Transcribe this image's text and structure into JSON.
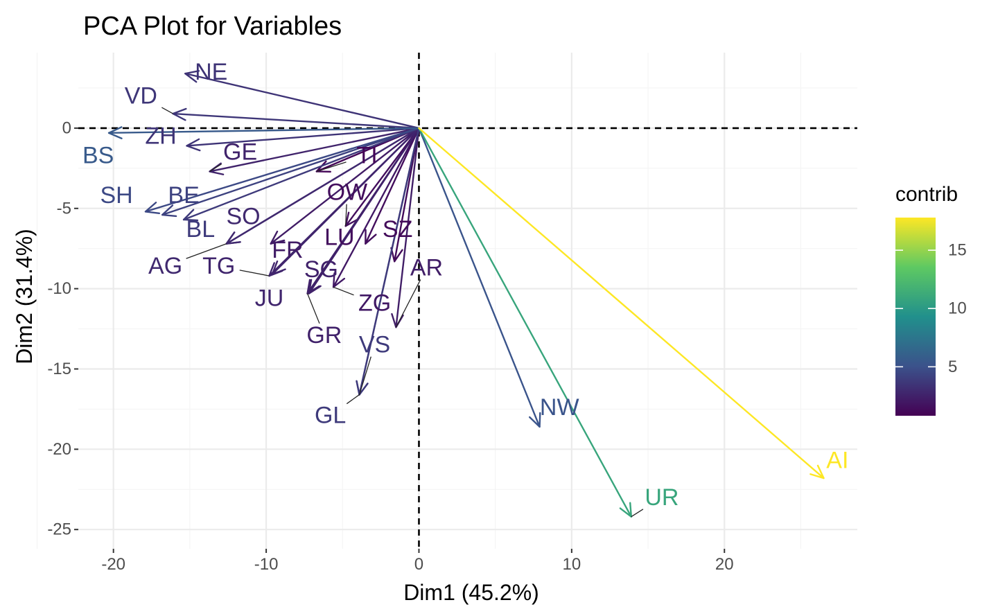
{
  "chart_data": {
    "type": "scatter",
    "title": "PCA Plot for Variables",
    "xlabel": "Dim1 (45.2%)",
    "ylabel": "Dim2 (31.4%)",
    "xlim": [
      -22.3,
      28.7
    ],
    "ylim": [
      -26.2,
      4.7
    ],
    "x_ticks": [
      -20,
      -10,
      0,
      10,
      20
    ],
    "y_ticks": [
      0,
      -5,
      -10,
      -15,
      -20,
      -25
    ],
    "grid": true,
    "reference_lines": {
      "x": 0,
      "y": 0,
      "style": "dashed"
    },
    "legend": {
      "title": "contrib",
      "position": "right",
      "ticks": [
        5,
        10,
        15
      ],
      "range": [
        0.8,
        17.8
      ],
      "colors": [
        "#440154",
        "#3b528b",
        "#21908c",
        "#5ec962",
        "#fde725"
      ]
    },
    "variables": [
      {
        "name": "NE",
        "x": -15.3,
        "y": 3.4,
        "contrib": 3.4,
        "label_x": -13.6,
        "label_y": 3.5
      },
      {
        "name": "VD",
        "x": -16.1,
        "y": 0.9,
        "contrib": 3.6,
        "label_x": -18.2,
        "label_y": 2.0
      },
      {
        "name": "ZH",
        "x": -15.2,
        "y": -1.1,
        "contrib": 3.4,
        "label_x": -16.9,
        "label_y": -0.5
      },
      {
        "name": "BS",
        "x": -20.3,
        "y": -0.3,
        "contrib": 5.6,
        "label_x": -21.0,
        "label_y": -1.7
      },
      {
        "name": "GE",
        "x": -13.7,
        "y": -2.7,
        "contrib": 2.6,
        "label_x": -11.7,
        "label_y": -1.5
      },
      {
        "name": "SH",
        "x": -17.9,
        "y": -5.2,
        "contrib": 4.6,
        "label_x": -19.8,
        "label_y": -4.2
      },
      {
        "name": "BE",
        "x": -16.8,
        "y": -5.4,
        "contrib": 4.2,
        "label_x": -15.4,
        "label_y": -4.2
      },
      {
        "name": "BL",
        "x": -15.4,
        "y": -5.7,
        "contrib": 3.8,
        "label_x": -14.3,
        "label_y": -6.3
      },
      {
        "name": "SO",
        "x": -12.6,
        "y": -7.2,
        "contrib": 2.9,
        "label_x": -11.5,
        "label_y": -5.5
      },
      {
        "name": "AG",
        "x": -12.6,
        "y": -7.2,
        "contrib": 2.9,
        "label_x": -16.6,
        "label_y": -8.6
      },
      {
        "name": "TG",
        "x": -9.8,
        "y": -9.2,
        "contrib": 2.7,
        "label_x": -13.1,
        "label_y": -8.6
      },
      {
        "name": "FR",
        "x": -9.7,
        "y": -7.2,
        "contrib": 2.2,
        "label_x": -8.6,
        "label_y": -7.6
      },
      {
        "name": "JU",
        "x": -9.6,
        "y": -9.1,
        "contrib": 2.7,
        "label_x": -9.8,
        "label_y": -10.6
      },
      {
        "name": "SG",
        "x": -7.2,
        "y": -10.3,
        "contrib": 2.5,
        "label_x": -6.4,
        "label_y": -8.8
      },
      {
        "name": "GR",
        "x": -7.3,
        "y": -10.3,
        "contrib": 2.5,
        "label_x": -6.2,
        "label_y": -12.9
      },
      {
        "name": "ZG",
        "x": -5.6,
        "y": -9.9,
        "contrib": 2.0,
        "label_x": -2.9,
        "label_y": -10.9
      },
      {
        "name": "OW",
        "x": -4.8,
        "y": -6.1,
        "contrib": 1.5,
        "label_x": -4.7,
        "label_y": -4.0
      },
      {
        "name": "LU",
        "x": -3.5,
        "y": -7.2,
        "contrib": 1.5,
        "label_x": -5.2,
        "label_y": -6.8
      },
      {
        "name": "SZ",
        "x": -1.6,
        "y": -8.3,
        "contrib": 1.3,
        "label_x": -1.4,
        "label_y": -6.3
      },
      {
        "name": "AR",
        "x": -1.5,
        "y": -12.4,
        "contrib": 2.3,
        "label_x": 0.5,
        "label_y": -8.7
      },
      {
        "name": "VS",
        "x": -3.9,
        "y": -16.6,
        "contrib": 3.8,
        "label_x": -2.9,
        "label_y": -13.5
      },
      {
        "name": "GL",
        "x": -3.9,
        "y": -16.6,
        "contrib": 3.8,
        "label_x": -5.8,
        "label_y": -17.9
      },
      {
        "name": "TI",
        "x": -6.7,
        "y": -2.7,
        "contrib": 1.0,
        "label_x": -3.4,
        "label_y": -1.7
      },
      {
        "name": "NW",
        "x": 7.9,
        "y": -18.6,
        "contrib": 5.2,
        "label_x": 9.2,
        "label_y": -17.4
      },
      {
        "name": "UR",
        "x": 13.9,
        "y": -24.2,
        "contrib": 10.9,
        "label_x": 15.9,
        "label_y": -23.0
      },
      {
        "name": "AI",
        "x": 26.5,
        "y": -21.8,
        "contrib": 17.8,
        "label_x": 27.4,
        "label_y": -20.7
      }
    ]
  }
}
